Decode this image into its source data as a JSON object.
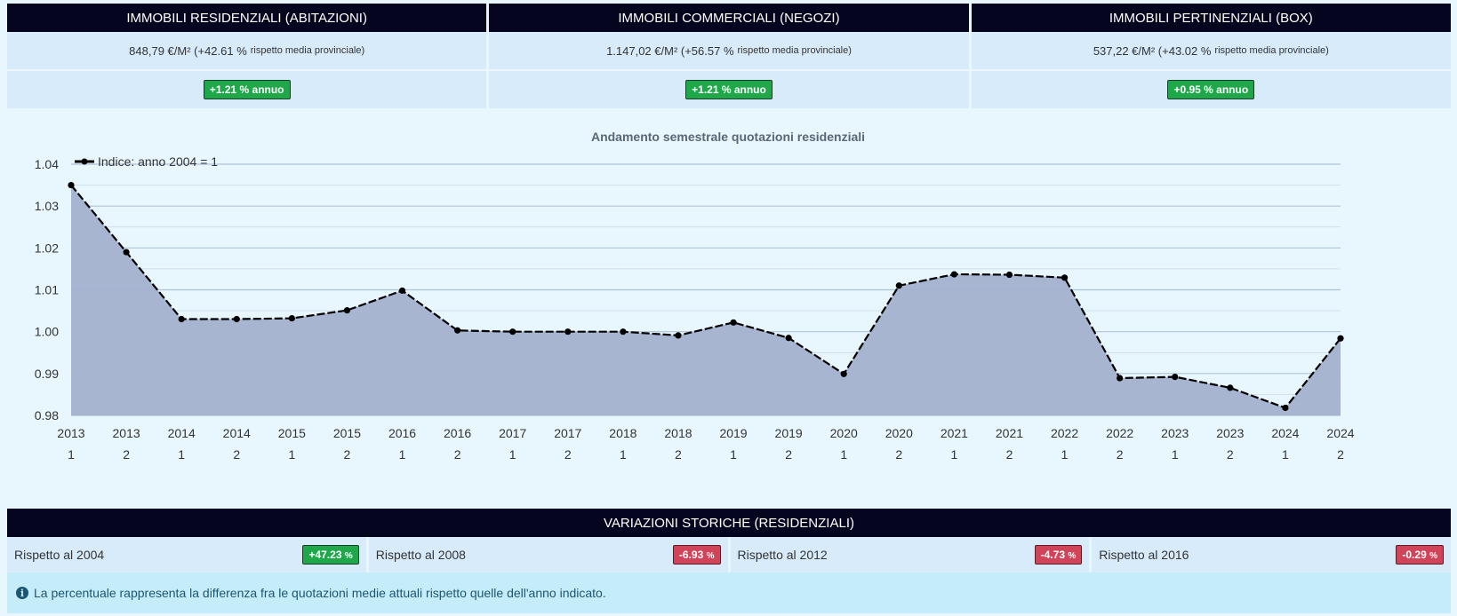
{
  "cards": [
    {
      "title": "IMMOBILI RESIDENZIALI (ABITAZIONI)",
      "price": "848,79 €/M² (+42.61 %",
      "price_note": "rispetto media provinciale)",
      "trend": "+1.21 % annuo"
    },
    {
      "title": "IMMOBILI COMMERCIALI (NEGOZI)",
      "price": "1.147,02 €/M² (+56.57 %",
      "price_note": "rispetto media provinciale)",
      "trend": "+1.21 % annuo"
    },
    {
      "title": "IMMOBILI PERTINENZIALI (BOX)",
      "price": "537,22 €/M² (+43.02 %",
      "price_note": "rispetto media provinciale)",
      "trend": "+0.95 % annuo"
    }
  ],
  "chart_data": {
    "type": "area",
    "title": "Andamento semestrale quotazioni residenziali",
    "legend_position": "top-left",
    "grid": true,
    "ylim": [
      0.98,
      1.04
    ],
    "yticks": [
      "0.98",
      "0.99",
      "1.00",
      "1.01",
      "1.02",
      "1.03",
      "1.04"
    ],
    "categories": [
      [
        "2013",
        "1"
      ],
      [
        "2013",
        "2"
      ],
      [
        "2014",
        "1"
      ],
      [
        "2014",
        "2"
      ],
      [
        "2015",
        "1"
      ],
      [
        "2015",
        "2"
      ],
      [
        "2016",
        "1"
      ],
      [
        "2016",
        "2"
      ],
      [
        "2017",
        "1"
      ],
      [
        "2017",
        "2"
      ],
      [
        "2018",
        "1"
      ],
      [
        "2018",
        "2"
      ],
      [
        "2019",
        "1"
      ],
      [
        "2019",
        "2"
      ],
      [
        "2020",
        "1"
      ],
      [
        "2020",
        "2"
      ],
      [
        "2021",
        "1"
      ],
      [
        "2021",
        "2"
      ],
      [
        "2022",
        "1"
      ],
      [
        "2022",
        "2"
      ],
      [
        "2023",
        "1"
      ],
      [
        "2023",
        "2"
      ],
      [
        "2024",
        "1"
      ],
      [
        "2024",
        "2"
      ]
    ],
    "series": [
      {
        "name": "Indice: anno 2004 = 1",
        "values": [
          1.035,
          1.019,
          1.003,
          1.003,
          1.0032,
          1.0051,
          1.0098,
          1.0003,
          1.0,
          1.0,
          1.0,
          0.9991,
          1.0022,
          0.9985,
          0.9899,
          1.011,
          1.0137,
          1.0136,
          1.0129,
          0.9889,
          0.9892,
          0.9866,
          0.9818,
          0.9984
        ]
      }
    ],
    "colors": {
      "fill": "#a4b1cf",
      "line": "#000000",
      "grid": "#a9bfd3"
    }
  },
  "historic": {
    "title": "VARIAZIONI STORICHE (RESIDENZIALI)",
    "items": [
      {
        "label": "Rispetto al 2004",
        "value": "+47.23",
        "positive": true
      },
      {
        "label": "Rispetto al 2008",
        "value": "-6.93",
        "positive": false
      },
      {
        "label": "Rispetto al 2012",
        "value": "-4.73",
        "positive": false
      },
      {
        "label": "Rispetto al 2016",
        "value": "-0.29",
        "positive": false
      }
    ],
    "percent_sign": "%",
    "note": "La percentuale rappresenta la differenza fra le quotazioni medie attuali rispetto quelle dell'anno indicato."
  }
}
